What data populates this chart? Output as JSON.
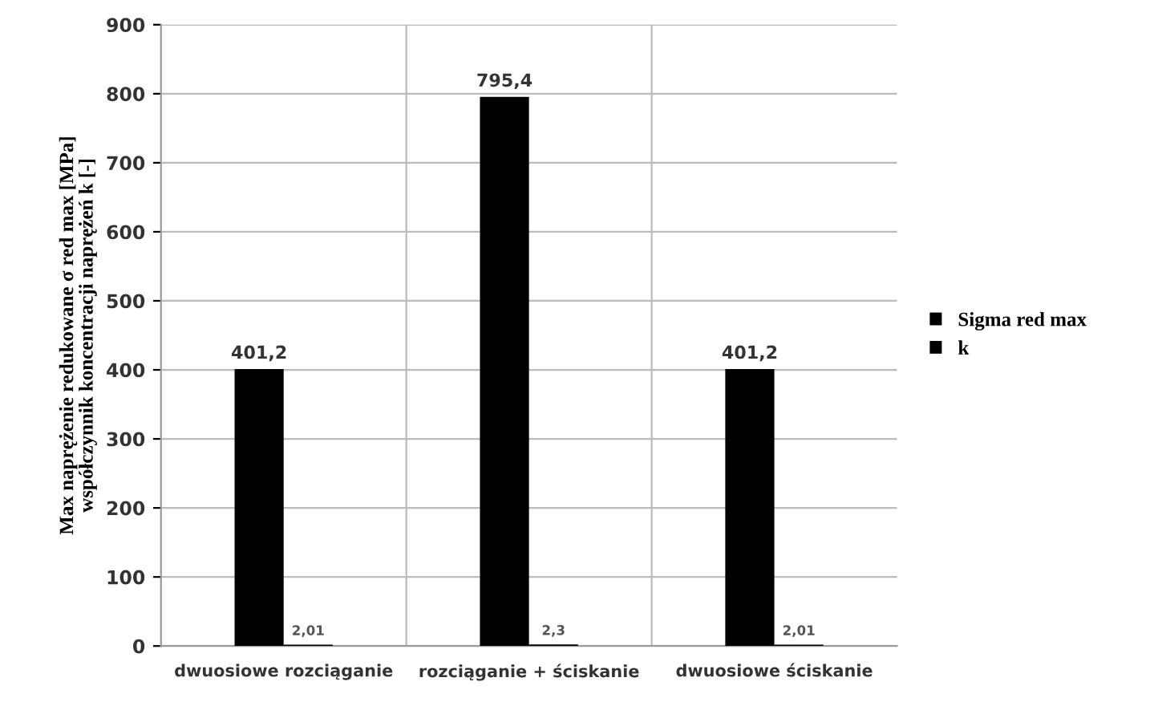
{
  "chart_data": {
    "type": "bar",
    "ylabel": "Max naprężenie redukowane σ red max [MPa]\nwspółczynnik koncentracji naprężeń k [-]",
    "categories": [
      "dwuosiowe rozciąganie",
      "rozciąganie + ściskanie",
      "dwuosiowe ściskanie"
    ],
    "series": [
      {
        "name": "Sigma red max",
        "color": "#000000",
        "values": [
          401.2,
          795.4,
          401.2
        ],
        "value_labels": [
          "401,2",
          "795,4",
          "401,2"
        ]
      },
      {
        "name": "k",
        "color": "#000000",
        "values": [
          2.01,
          2.3,
          2.01
        ],
        "value_labels": [
          "2,01",
          "2,3",
          "2,01"
        ]
      }
    ],
    "ylim": [
      0,
      900
    ],
    "yticks": [
      0,
      100,
      200,
      300,
      400,
      500,
      600,
      700,
      800,
      900
    ],
    "grid": true,
    "legend": "right"
  }
}
